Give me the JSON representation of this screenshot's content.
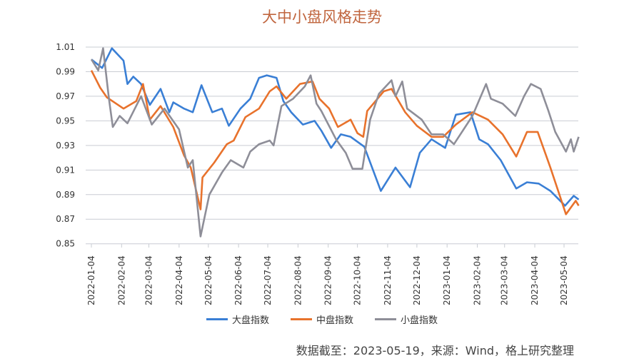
{
  "chart_data": {
    "type": "line",
    "title": "大中小盘风格走势",
    "xlabel": "",
    "ylabel": "",
    "xlim": [
      "2022-01-04",
      "2023-05-19"
    ],
    "ylim": [
      0.85,
      1.01
    ],
    "y_ticks": [
      "1.01",
      "0.99",
      "0.97",
      "0.95",
      "0.93",
      "0.91",
      "0.89",
      "0.87",
      "0.85"
    ],
    "x_ticks": [
      "2022-01-04",
      "2022-02-04",
      "2022-03-04",
      "2022-04-04",
      "2022-05-04",
      "2022-06-04",
      "2022-07-04",
      "2022-08-04",
      "2022-09-04",
      "2022-10-04",
      "2022-11-04",
      "2022-12-04",
      "2023-01-04",
      "2023-02-04",
      "2023-03-04",
      "2023-04-04",
      "2023-05-04"
    ],
    "grid": true,
    "legend_position": "bottom",
    "series": [
      {
        "name": "大盘指数",
        "color": "#3a7fd5",
        "points": [
          [
            "2022-01-04",
            1.0
          ],
          [
            "2022-01-15",
            0.993
          ],
          [
            "2022-01-25",
            1.009
          ],
          [
            "2022-02-06",
            0.999
          ],
          [
            "2022-02-10",
            0.98
          ],
          [
            "2022-02-16",
            0.986
          ],
          [
            "2022-02-24",
            0.98
          ],
          [
            "2022-03-05",
            0.963
          ],
          [
            "2022-03-16",
            0.976
          ],
          [
            "2022-03-25",
            0.957
          ],
          [
            "2022-03-29",
            0.965
          ],
          [
            "2022-04-09",
            0.96
          ],
          [
            "2022-04-18",
            0.957
          ],
          [
            "2022-04-27",
            0.979
          ],
          [
            "2022-05-08",
            0.957
          ],
          [
            "2022-05-18",
            0.96
          ],
          [
            "2022-05-25",
            0.946
          ],
          [
            "2022-06-06",
            0.96
          ],
          [
            "2022-06-16",
            0.968
          ],
          [
            "2022-06-25",
            0.985
          ],
          [
            "2022-07-03",
            0.987
          ],
          [
            "2022-07-13",
            0.985
          ],
          [
            "2022-07-20",
            0.966
          ],
          [
            "2022-07-28",
            0.957
          ],
          [
            "2022-08-09",
            0.947
          ],
          [
            "2022-08-21",
            0.95
          ],
          [
            "2022-08-28",
            0.942
          ],
          [
            "2022-09-07",
            0.928
          ],
          [
            "2022-09-17",
            0.939
          ],
          [
            "2022-09-27",
            0.937
          ],
          [
            "2022-10-11",
            0.929
          ],
          [
            "2022-10-28",
            0.893
          ],
          [
            "2022-11-12",
            0.912
          ],
          [
            "2022-11-27",
            0.896
          ],
          [
            "2022-12-07",
            0.924
          ],
          [
            "2022-12-19",
            0.935
          ],
          [
            "2023-01-02",
            0.928
          ],
          [
            "2023-01-13",
            0.955
          ],
          [
            "2023-01-28",
            0.957
          ],
          [
            "2023-02-06",
            0.935
          ],
          [
            "2023-02-15",
            0.931
          ],
          [
            "2023-02-28",
            0.918
          ],
          [
            "2023-03-16",
            0.895
          ],
          [
            "2023-03-27",
            0.9
          ],
          [
            "2023-04-08",
            0.899
          ],
          [
            "2023-04-20",
            0.893
          ],
          [
            "2023-05-05",
            0.881
          ],
          [
            "2023-05-14",
            0.889
          ],
          [
            "2023-05-19",
            0.886
          ]
        ]
      },
      {
        "name": "中盘指数",
        "color": "#e8722c",
        "points": [
          [
            "2022-01-04",
            0.991
          ],
          [
            "2022-01-13",
            0.977
          ],
          [
            "2022-01-20",
            0.969
          ],
          [
            "2022-02-06",
            0.96
          ],
          [
            "2022-02-19",
            0.966
          ],
          [
            "2022-02-26",
            0.98
          ],
          [
            "2022-03-05",
            0.951
          ],
          [
            "2022-03-16",
            0.962
          ],
          [
            "2022-03-29",
            0.945
          ],
          [
            "2022-04-09",
            0.922
          ],
          [
            "2022-04-16",
            0.912
          ],
          [
            "2022-04-26",
            0.878
          ],
          [
            "2022-04-28",
            0.904
          ],
          [
            "2022-05-10",
            0.916
          ],
          [
            "2022-05-23",
            0.931
          ],
          [
            "2022-05-30",
            0.934
          ],
          [
            "2022-06-11",
            0.953
          ],
          [
            "2022-06-25",
            0.96
          ],
          [
            "2022-07-06",
            0.974
          ],
          [
            "2022-07-13",
            0.978
          ],
          [
            "2022-07-23",
            0.968
          ],
          [
            "2022-08-06",
            0.98
          ],
          [
            "2022-08-19",
            0.982
          ],
          [
            "2022-08-26",
            0.968
          ],
          [
            "2022-09-05",
            0.96
          ],
          [
            "2022-09-14",
            0.945
          ],
          [
            "2022-09-27",
            0.951
          ],
          [
            "2022-10-04",
            0.94
          ],
          [
            "2022-10-10",
            0.937
          ],
          [
            "2022-10-14",
            0.958
          ],
          [
            "2022-10-31",
            0.974
          ],
          [
            "2022-11-08",
            0.976
          ],
          [
            "2022-11-22",
            0.957
          ],
          [
            "2022-12-04",
            0.946
          ],
          [
            "2022-12-19",
            0.937
          ],
          [
            "2022-12-31",
            0.937
          ],
          [
            "2023-01-13",
            0.947
          ],
          [
            "2023-01-30",
            0.957
          ],
          [
            "2023-02-15",
            0.951
          ],
          [
            "2023-03-02",
            0.939
          ],
          [
            "2023-03-16",
            0.921
          ],
          [
            "2023-03-27",
            0.941
          ],
          [
            "2023-04-07",
            0.941
          ],
          [
            "2023-04-20",
            0.912
          ],
          [
            "2023-05-06",
            0.874
          ],
          [
            "2023-05-16",
            0.885
          ],
          [
            "2023-05-19",
            0.881
          ]
        ]
      },
      {
        "name": "小盘指数",
        "color": "#8e8e98",
        "points": [
          [
            "2022-01-04",
            1.0
          ],
          [
            "2022-01-11",
            0.991
          ],
          [
            "2022-01-16",
            1.009
          ],
          [
            "2022-01-22",
            0.968
          ],
          [
            "2022-01-26",
            0.945
          ],
          [
            "2022-02-02",
            0.954
          ],
          [
            "2022-02-10",
            0.948
          ],
          [
            "2022-02-24",
            0.97
          ],
          [
            "2022-03-07",
            0.947
          ],
          [
            "2022-03-20",
            0.96
          ],
          [
            "2022-04-04",
            0.943
          ],
          [
            "2022-04-13",
            0.912
          ],
          [
            "2022-04-18",
            0.918
          ],
          [
            "2022-04-26",
            0.856
          ],
          [
            "2022-05-05",
            0.89
          ],
          [
            "2022-05-18",
            0.908
          ],
          [
            "2022-05-27",
            0.918
          ],
          [
            "2022-06-09",
            0.912
          ],
          [
            "2022-06-16",
            0.925
          ],
          [
            "2022-06-25",
            0.931
          ],
          [
            "2022-07-06",
            0.934
          ],
          [
            "2022-07-10",
            0.93
          ],
          [
            "2022-07-18",
            0.962
          ],
          [
            "2022-07-30",
            0.968
          ],
          [
            "2022-08-11",
            0.978
          ],
          [
            "2022-08-17",
            0.987
          ],
          [
            "2022-08-23",
            0.964
          ],
          [
            "2022-08-28",
            0.958
          ],
          [
            "2022-09-12",
            0.935
          ],
          [
            "2022-09-22",
            0.924
          ],
          [
            "2022-09-29",
            0.911
          ],
          [
            "2022-10-09",
            0.911
          ],
          [
            "2022-10-17",
            0.951
          ],
          [
            "2022-10-26",
            0.972
          ],
          [
            "2022-11-08",
            0.983
          ],
          [
            "2022-11-12",
            0.97
          ],
          [
            "2022-11-19",
            0.982
          ],
          [
            "2022-11-24",
            0.96
          ],
          [
            "2022-12-09",
            0.951
          ],
          [
            "2022-12-19",
            0.939
          ],
          [
            "2022-12-31",
            0.939
          ],
          [
            "2023-01-11",
            0.931
          ],
          [
            "2023-01-30",
            0.954
          ],
          [
            "2023-02-13",
            0.98
          ],
          [
            "2023-02-18",
            0.968
          ],
          [
            "2023-03-02",
            0.964
          ],
          [
            "2023-03-15",
            0.954
          ],
          [
            "2023-03-24",
            0.97
          ],
          [
            "2023-03-31",
            0.98
          ],
          [
            "2023-04-10",
            0.976
          ],
          [
            "2023-04-18",
            0.958
          ],
          [
            "2023-04-25",
            0.941
          ],
          [
            "2023-05-06",
            0.925
          ],
          [
            "2023-05-11",
            0.935
          ],
          [
            "2023-05-14",
            0.925
          ],
          [
            "2023-05-19",
            0.937
          ]
        ]
      }
    ],
    "source_note": "数据截至：2023-05-19，来源：Wind，格上研究整理"
  },
  "colors": {
    "title": "#c0653e",
    "grid": "#c9ccd3",
    "axis_text": "#333333"
  }
}
